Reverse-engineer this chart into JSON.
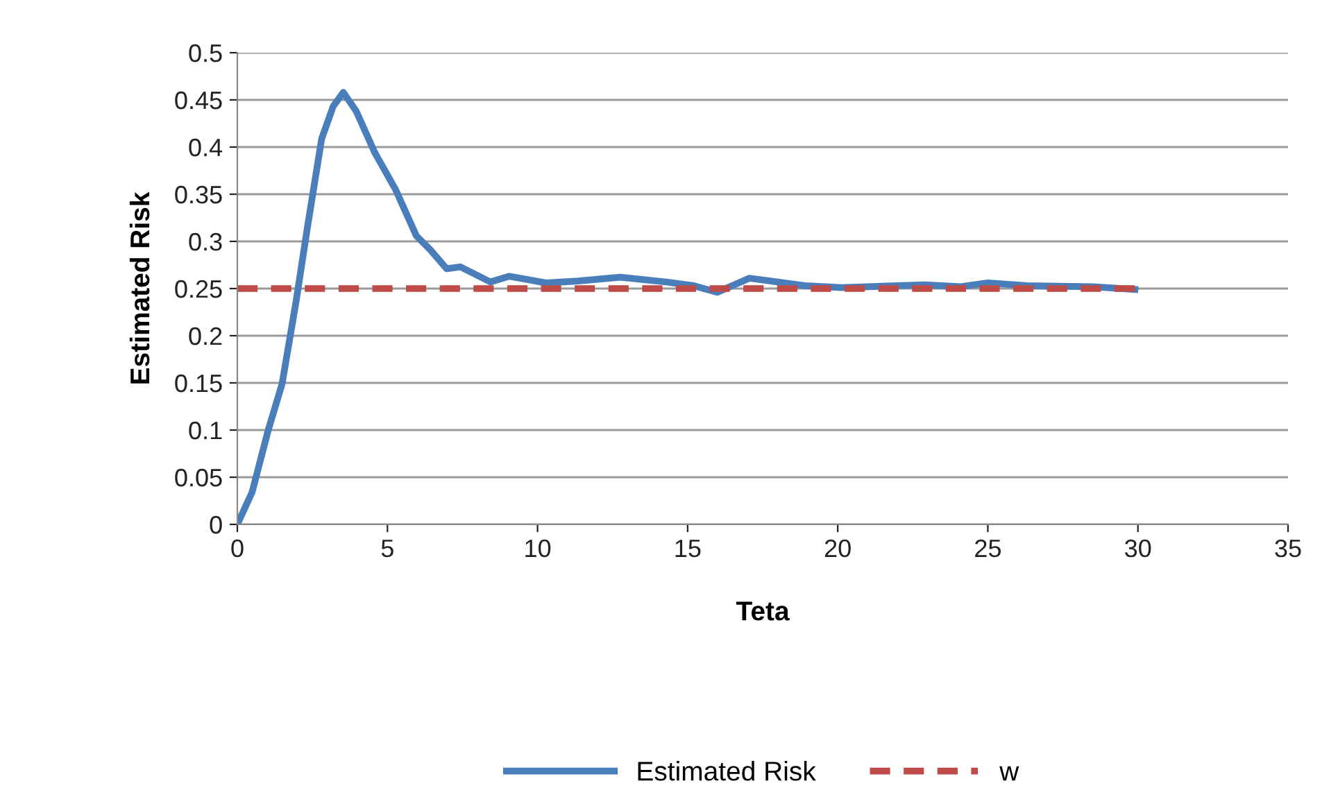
{
  "chart_data": {
    "type": "line",
    "xlabel": "Teta",
    "ylabel": "Estimated Risk",
    "xlim": [
      0,
      35
    ],
    "xticks": [
      0,
      5,
      10,
      15,
      20,
      25,
      30,
      35
    ],
    "ylim": [
      0,
      0.5
    ],
    "yticks": [
      0,
      0.05,
      0.1,
      0.15,
      0.2,
      0.25,
      0.3,
      0.35,
      0.4,
      0.45,
      0.5
    ],
    "grid": "y",
    "legend": "bottom",
    "series": [
      {
        "name": "Estimated Risk",
        "color": "#4a7ebb",
        "line_style": "solid",
        "x": [
          0,
          0.49,
          1.03,
          1.49,
          1.96,
          2.34,
          2.81,
          3.19,
          3.53,
          3.96,
          4.58,
          5.27,
          5.96,
          6.43,
          6.97,
          7.43,
          8.43,
          9.05,
          10.28,
          11.36,
          12.75,
          14.28,
          15.2,
          15.98,
          17.06,
          18.9,
          20.14,
          22.9,
          24.1,
          25.0,
          26.3,
          28.5,
          29.9
        ],
        "values": [
          0,
          0.034,
          0.1,
          0.149,
          0.237,
          0.316,
          0.409,
          0.443,
          0.458,
          0.438,
          0.394,
          0.355,
          0.306,
          0.291,
          0.271,
          0.273,
          0.257,
          0.263,
          0.256,
          0.258,
          0.262,
          0.257,
          0.253,
          0.246,
          0.261,
          0.253,
          0.251,
          0.254,
          0.252,
          0.256,
          0.253,
          0.252,
          0.249
        ]
      },
      {
        "name": "w",
        "color": "#be4b48",
        "line_style": "dashed",
        "x": [
          0,
          30
        ],
        "values": [
          0.25,
          0.25
        ]
      }
    ]
  }
}
